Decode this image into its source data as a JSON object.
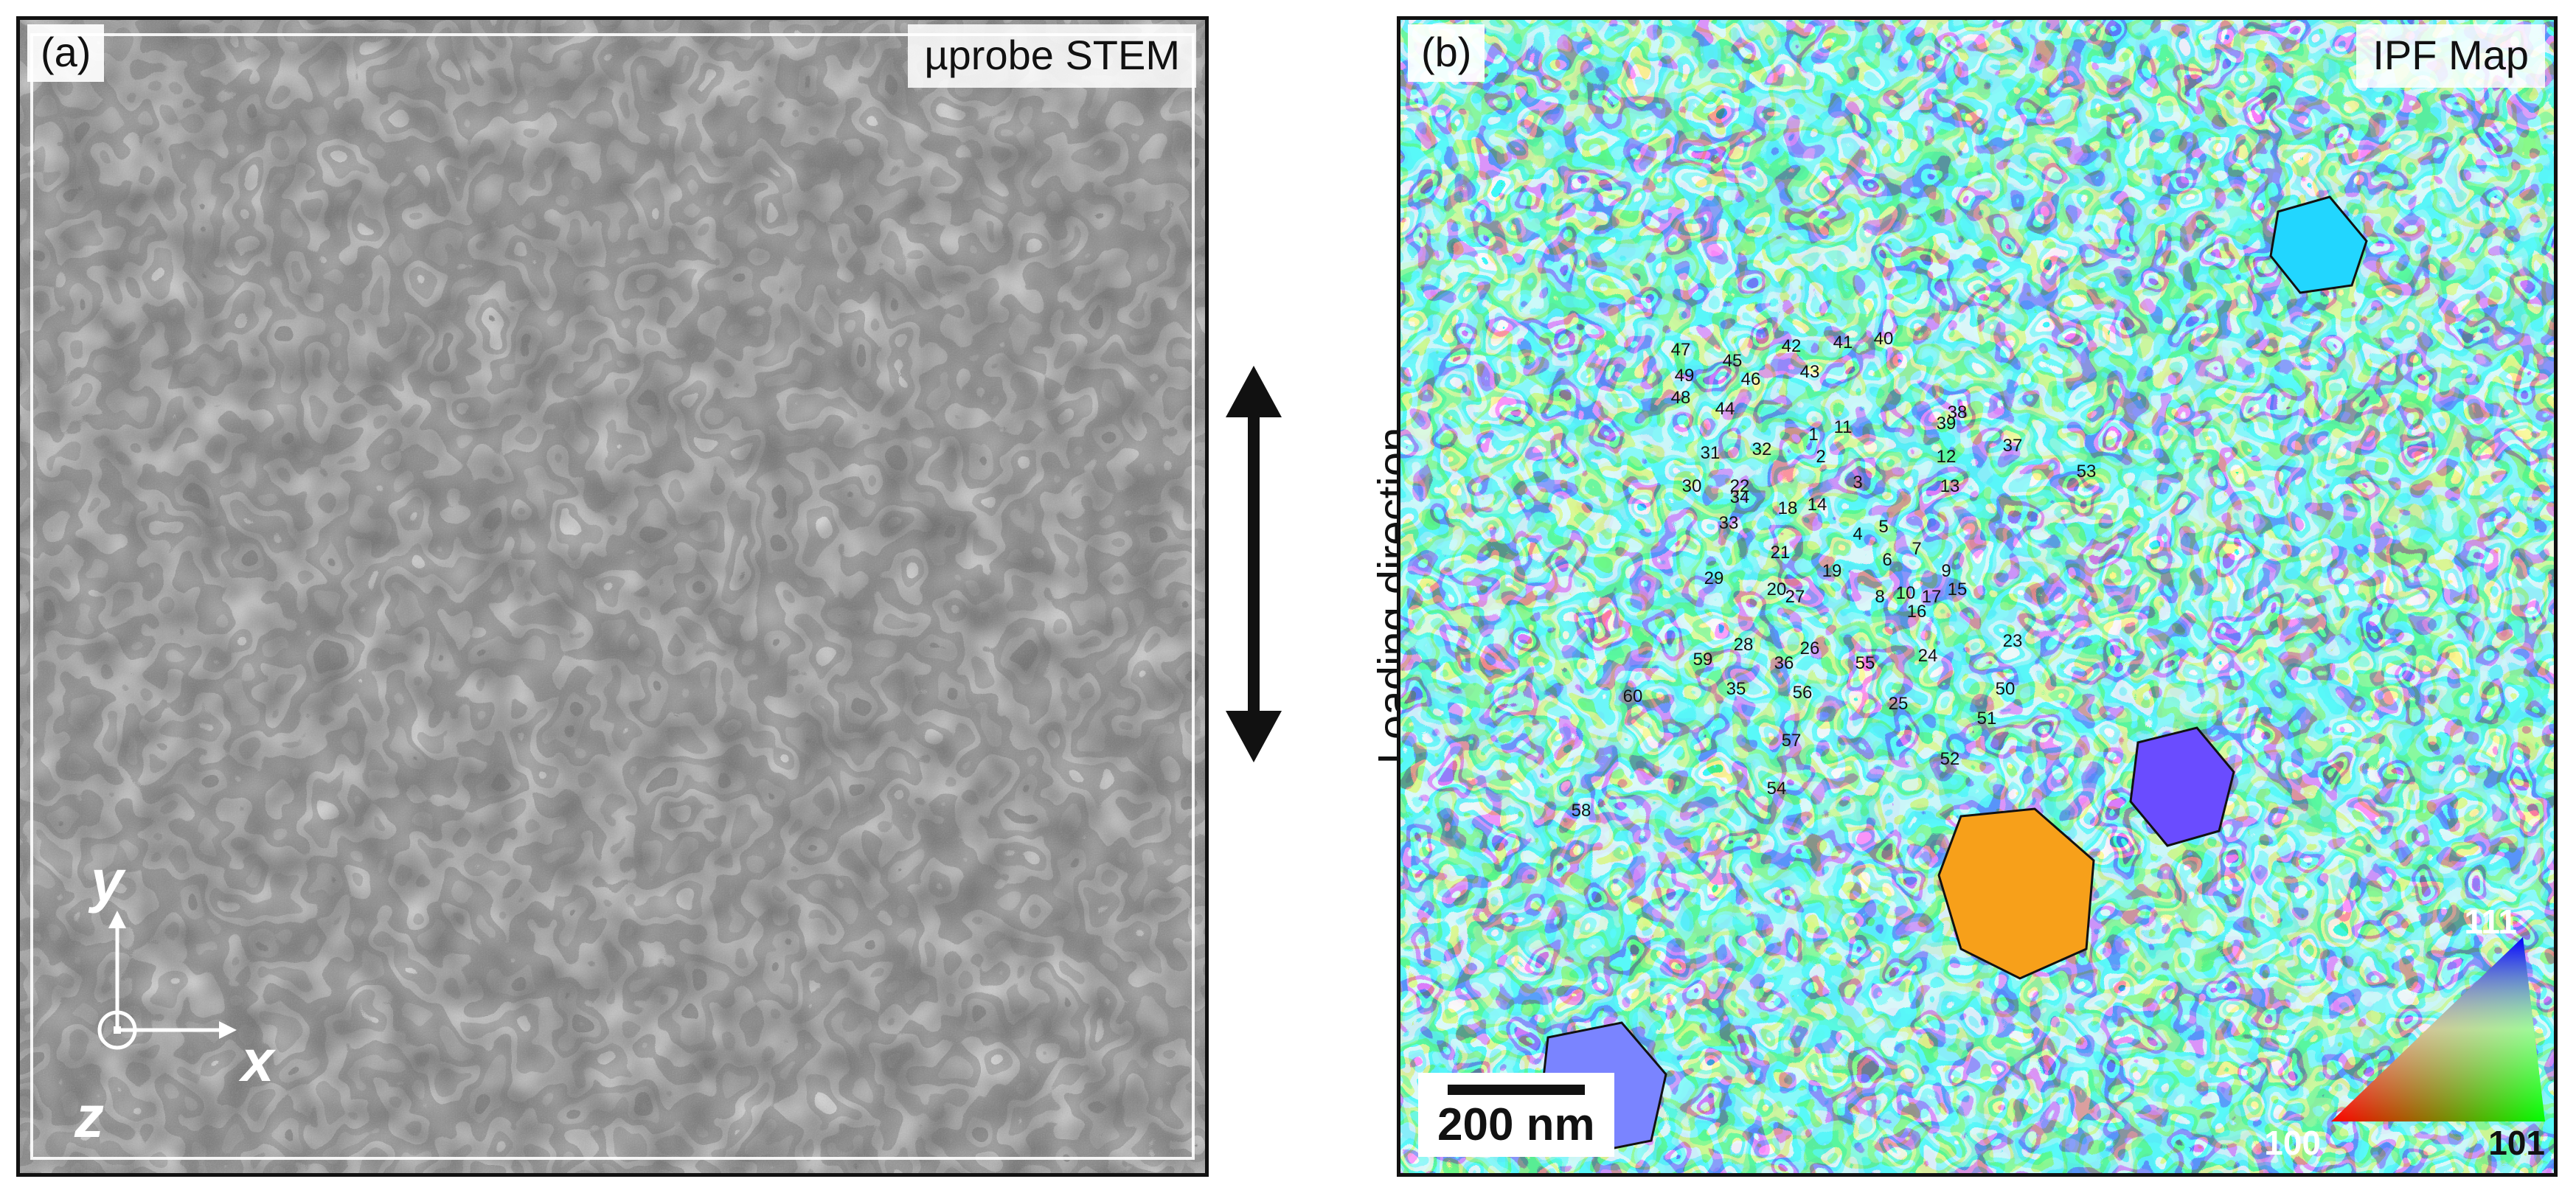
{
  "panel_a": {
    "tag": "(a)",
    "title": "µprobe STEM",
    "axes": {
      "y": "y",
      "x": "x",
      "z": "z"
    }
  },
  "loading_direction": "Loading direction",
  "panel_b": {
    "tag": "(b)",
    "title": "IPF Map",
    "scale_bar": "200 nm",
    "ipf_key": {
      "top": "111",
      "bottom_left": "100",
      "bottom_right": "101"
    },
    "grain_labels": [
      "1",
      "2",
      "3",
      "4",
      "5",
      "6",
      "7",
      "8",
      "9",
      "10",
      "11",
      "12",
      "13",
      "14",
      "15",
      "16",
      "17",
      "18",
      "19",
      "20",
      "21",
      "22",
      "23",
      "24",
      "25",
      "26",
      "27",
      "28",
      "29",
      "30",
      "31",
      "32",
      "33",
      "34",
      "35",
      "36",
      "37",
      "38",
      "39",
      "40",
      "41",
      "42",
      "43",
      "44",
      "45",
      "46",
      "47",
      "48",
      "49",
      "50",
      "51",
      "52",
      "53",
      "54",
      "55",
      "56",
      "57",
      "58",
      "59",
      "60"
    ]
  }
}
